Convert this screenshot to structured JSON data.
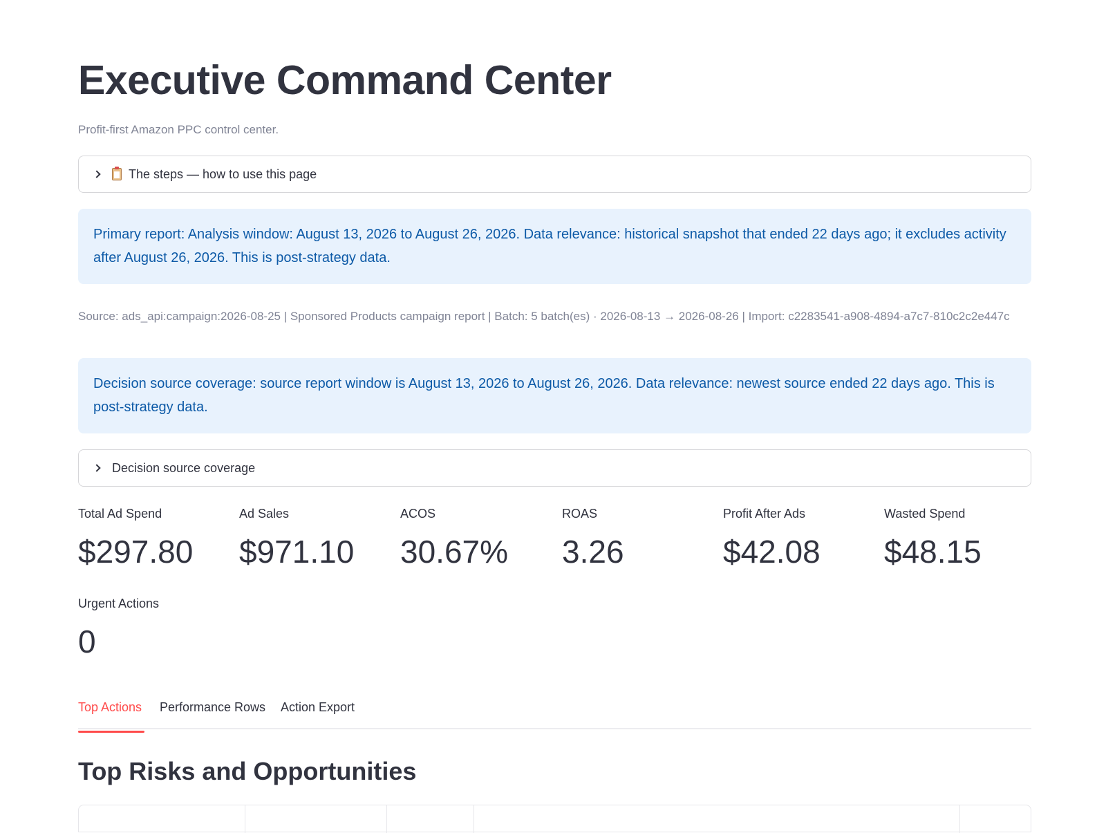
{
  "header": {
    "title": "Executive Command Center",
    "caption": "Profit-first Amazon PPC control center."
  },
  "expanders": {
    "steps": {
      "label": "The steps — how to use this page",
      "icon": "clipboard-icon"
    },
    "coverage": {
      "label": "Decision source coverage"
    }
  },
  "primary_report_info": "Primary report: Analysis window: August 13, 2026 to August 26, 2026. Data relevance: historical snapshot that ended 22 days ago; it excludes activity after August 26, 2026. This is post-strategy data.",
  "source_line": "Source: ads_api:campaign:2026-08-25 | Sponsored Products campaign report | Batch: 5 batch(es) · 2026-08-13 → 2026-08-26 | Import: c2283541-a908-4894-a7c7-810c2c2e447c",
  "coverage_info": "Decision source coverage: source report window is August 13, 2026 to August 26, 2026. Data relevance: newest source ended 22 days ago. This is post-strategy data.",
  "metrics": [
    {
      "label": "Total Ad Spend",
      "value": "$297.80"
    },
    {
      "label": "Ad Sales",
      "value": "$971.10"
    },
    {
      "label": "ACOS",
      "value": "30.67%"
    },
    {
      "label": "ROAS",
      "value": "3.26"
    },
    {
      "label": "Profit After Ads",
      "value": "$42.08"
    },
    {
      "label": "Wasted Spend",
      "value": "$48.15"
    },
    {
      "label": "Urgent Actions",
      "value": "0"
    }
  ],
  "tabs": [
    {
      "label": "Top Actions",
      "active": true
    },
    {
      "label": "Performance Rows",
      "active": false
    },
    {
      "label": "Action Export",
      "active": false
    }
  ],
  "section": {
    "title": "Top Risks and Opportunities"
  },
  "colors": {
    "accent": "#ff4b4b",
    "info_bg": "#e8f2fd",
    "info_text": "#0d5aa7",
    "text": "#31333f",
    "muted": "#808495"
  }
}
